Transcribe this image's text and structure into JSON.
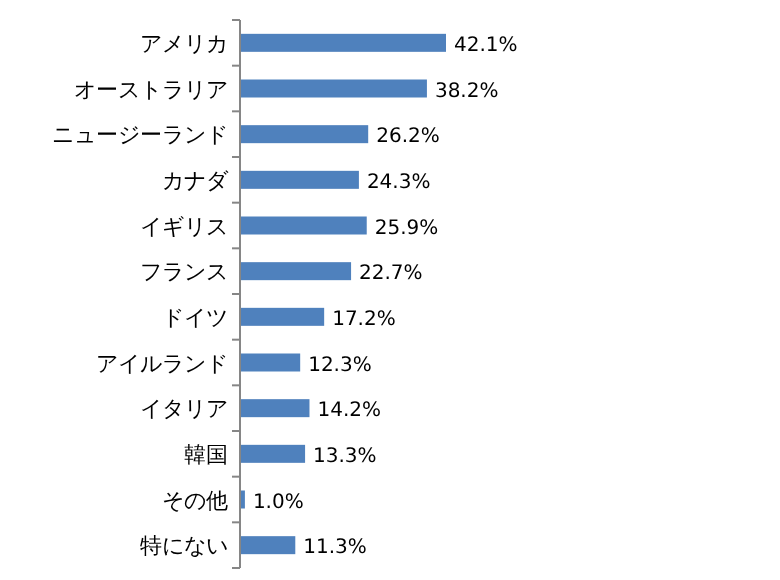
{
  "chart_data": {
    "type": "bar",
    "orientation": "horizontal",
    "categories": [
      "アメリカ",
      "オーストラリア",
      "ニュージーランド",
      "カナダ",
      "イギリス",
      "フランス",
      "ドイツ",
      "アイルランド",
      "イタリア",
      "韓国",
      "その他",
      "特にない"
    ],
    "values": [
      42.1,
      38.2,
      26.2,
      24.3,
      25.9,
      22.7,
      17.2,
      12.3,
      14.2,
      13.3,
      1.0,
      11.3
    ],
    "value_labels": [
      "42.1%",
      "38.2%",
      "26.2%",
      "24.3%",
      "25.9%",
      "22.7%",
      "17.2%",
      "12.3%",
      "14.2%",
      "13.3%",
      "1.0%",
      "11.3%"
    ],
    "color": "#4f81bd"
  }
}
